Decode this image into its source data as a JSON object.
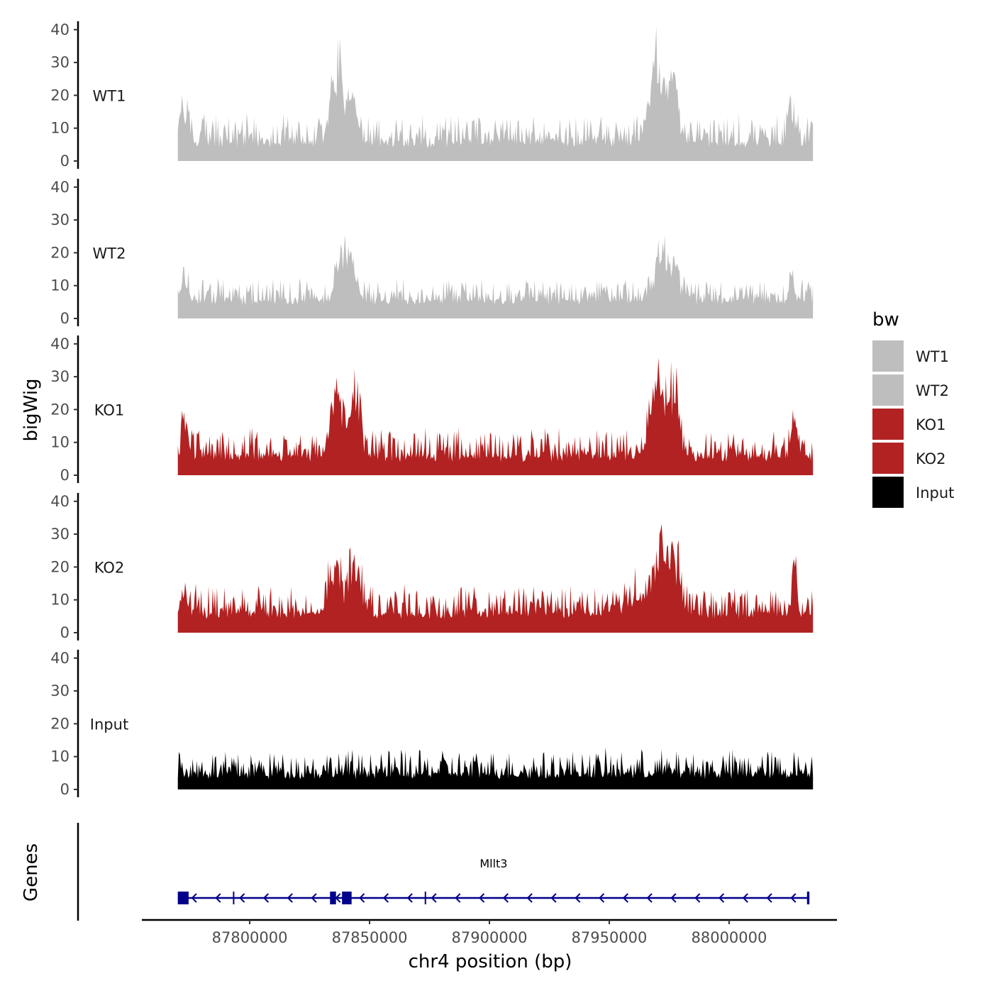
{
  "chart_data": {
    "type": "area",
    "title": "",
    "ylabel": "bigWig",
    "xlabel": "chr4 position (bp)",
    "chromosome": "chr4",
    "xlim": [
      87755000,
      88045000
    ],
    "data_range": [
      87770000,
      88035000
    ],
    "x_ticks": [
      87800000,
      87850000,
      87900000,
      87950000,
      88000000
    ],
    "x_tick_labels": [
      "87800000",
      "87850000",
      "87900000",
      "87950000",
      "88000000"
    ],
    "ylim": [
      0,
      42
    ],
    "y_ticks": [
      0,
      10,
      20,
      30,
      40
    ],
    "y_tick_labels": [
      "0",
      "10",
      "20",
      "30",
      "40"
    ],
    "series": [
      {
        "name": "WT1",
        "color": "#bebebe",
        "baseline": 4,
        "noise": 5,
        "peaks": [
          {
            "x": 87773000,
            "h": 8,
            "w": 2000
          },
          {
            "x": 87836000,
            "h": 20,
            "w": 3500
          },
          {
            "x": 87843000,
            "h": 14,
            "w": 3000
          },
          {
            "x": 87837500,
            "h": 8,
            "w": 800
          },
          {
            "x": 87970000,
            "h": 22,
            "w": 4000
          },
          {
            "x": 87977000,
            "h": 14,
            "w": 2500
          },
          {
            "x": 88026000,
            "h": 11,
            "w": 1500
          }
        ]
      },
      {
        "name": "WT2",
        "color": "#bebebe",
        "baseline": 4,
        "noise": 4,
        "peaks": [
          {
            "x": 87773000,
            "h": 6,
            "w": 2000
          },
          {
            "x": 87838000,
            "h": 12,
            "w": 3500
          },
          {
            "x": 87843000,
            "h": 8,
            "w": 3000
          },
          {
            "x": 87972000,
            "h": 13,
            "w": 4000
          },
          {
            "x": 87978000,
            "h": 8,
            "w": 2500
          },
          {
            "x": 88026000,
            "h": 7,
            "w": 1500
          }
        ]
      },
      {
        "name": "KO1",
        "color": "#b22222",
        "baseline": 4,
        "noise": 5,
        "peaks": [
          {
            "x": 87773000,
            "h": 7,
            "w": 2000
          },
          {
            "x": 87836000,
            "h": 16,
            "w": 3500
          },
          {
            "x": 87844000,
            "h": 16,
            "w": 3000
          },
          {
            "x": 87970000,
            "h": 21,
            "w": 4000
          },
          {
            "x": 87977000,
            "h": 18,
            "w": 2500
          },
          {
            "x": 88027000,
            "h": 13,
            "w": 1500
          }
        ]
      },
      {
        "name": "KO2",
        "color": "#b22222",
        "baseline": 4,
        "noise": 5,
        "peaks": [
          {
            "x": 87773000,
            "h": 5,
            "w": 2000
          },
          {
            "x": 87836000,
            "h": 14,
            "w": 3500
          },
          {
            "x": 87844000,
            "h": 14,
            "w": 3000
          },
          {
            "x": 87963000,
            "h": 6,
            "w": 6000
          },
          {
            "x": 87972000,
            "h": 18,
            "w": 4000
          },
          {
            "x": 87978000,
            "h": 12,
            "w": 2500
          },
          {
            "x": 88027000,
            "h": 13,
            "w": 1500
          }
        ]
      },
      {
        "name": "Input",
        "color": "#000000",
        "baseline": 3,
        "noise": 4.5,
        "peaks": []
      }
    ],
    "legend": {
      "title": "bw",
      "position": "right",
      "entries": [
        {
          "label": "WT1",
          "color": "#bebebe"
        },
        {
          "label": "WT2",
          "color": "#bebebe"
        },
        {
          "label": "KO1",
          "color": "#b22222"
        },
        {
          "label": "KO2",
          "color": "#b22222"
        },
        {
          "label": "Input",
          "color": "#000000"
        }
      ]
    },
    "genes_track": {
      "label": "Genes",
      "color": "#00008b",
      "genes": [
        {
          "name": "Mllt3",
          "start": 87770000,
          "end": 88033500,
          "strand": "-",
          "exons": [
            [
              87770000,
              87774500
            ],
            [
              87833500,
              87836000
            ],
            [
              87838500,
              87842500
            ],
            [
              87873000,
              87873400
            ],
            [
              87793000,
              87793300
            ],
            [
              88032500,
              88033500
            ]
          ]
        }
      ]
    }
  }
}
